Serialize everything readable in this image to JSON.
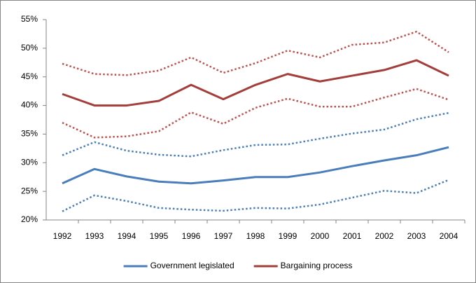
{
  "chart_data": {
    "type": "line",
    "categories": [
      "1992",
      "1993",
      "1994",
      "1995",
      "1996",
      "1997",
      "1998",
      "1999",
      "2000",
      "2001",
      "2002",
      "2003",
      "2004"
    ],
    "series": [
      {
        "name": "Government legislated",
        "color": "#4a7ebb",
        "dash": "solid",
        "values": [
          26.4,
          28.9,
          27.6,
          26.7,
          26.4,
          26.9,
          27.5,
          27.5,
          28.3,
          29.4,
          30.4,
          31.3,
          32.7
        ]
      },
      {
        "color": "#4a7ebb",
        "dash": "dotted",
        "values": [
          31.3,
          33.6,
          32.1,
          31.4,
          31.1,
          32.2,
          33.1,
          33.2,
          34.2,
          35.1,
          35.8,
          37.6,
          38.7
        ]
      },
      {
        "color": "#4a7ebb",
        "dash": "dotted",
        "values": [
          21.5,
          24.3,
          23.3,
          22.1,
          21.8,
          21.6,
          22.1,
          22.0,
          22.7,
          23.9,
          25.1,
          24.7,
          27.0
        ]
      },
      {
        "name": "Bargaining process",
        "color": "#a33e3b",
        "dash": "solid",
        "values": [
          42.0,
          40.0,
          40.0,
          40.8,
          43.6,
          41.1,
          43.6,
          45.5,
          44.2,
          45.2,
          46.2,
          47.9,
          45.2
        ]
      },
      {
        "color": "#c0504d",
        "dash": "dotted",
        "values": [
          47.3,
          45.5,
          45.3,
          46.1,
          48.4,
          45.7,
          47.4,
          49.6,
          48.4,
          50.6,
          51.0,
          52.9,
          49.3
        ]
      },
      {
        "color": "#c0504d",
        "dash": "dotted",
        "values": [
          37.0,
          34.4,
          34.6,
          35.5,
          38.8,
          36.8,
          39.6,
          41.2,
          39.8,
          39.8,
          41.4,
          42.9,
          41.0
        ]
      }
    ],
    "ylim": [
      20,
      55
    ],
    "yticks": [
      {
        "value": 20,
        "label": "20%"
      },
      {
        "value": 25,
        "label": "25%"
      },
      {
        "value": 30,
        "label": "30%"
      },
      {
        "value": 35,
        "label": "35%"
      },
      {
        "value": 40,
        "label": "40%"
      },
      {
        "value": 45,
        "label": "45%"
      },
      {
        "value": 50,
        "label": "50%"
      },
      {
        "value": 55,
        "label": "55%"
      }
    ],
    "grid": false,
    "legend": "bottom"
  }
}
